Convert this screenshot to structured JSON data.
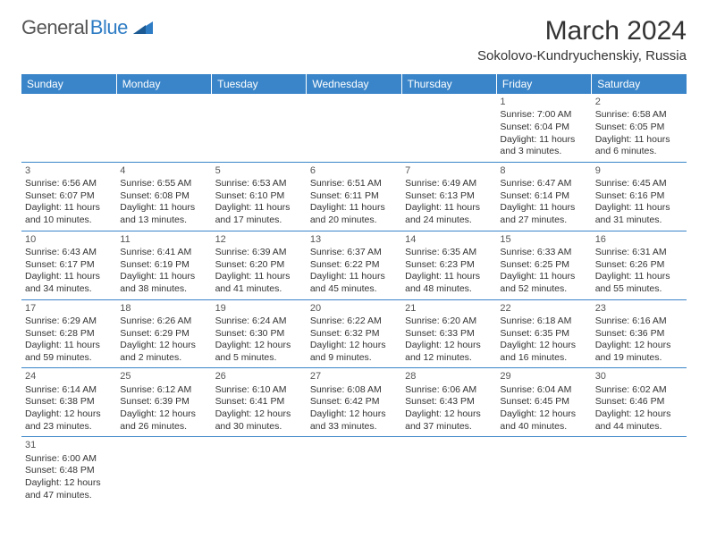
{
  "logo": {
    "text_a": "General",
    "text_b": "Blue"
  },
  "title": "March 2024",
  "location": "Sokolovo-Kundryuchenskiy, Russia",
  "colors": {
    "header_bg": "#3a85c9",
    "header_text": "#ffffff",
    "border": "#3a85c9",
    "text": "#333333",
    "logo_gray": "#555555",
    "logo_blue": "#2e7cc4"
  },
  "day_headers": [
    "Sunday",
    "Monday",
    "Tuesday",
    "Wednesday",
    "Thursday",
    "Friday",
    "Saturday"
  ],
  "weeks": [
    [
      null,
      null,
      null,
      null,
      null,
      {
        "n": "1",
        "l1": "Sunrise: 7:00 AM",
        "l2": "Sunset: 6:04 PM",
        "l3": "Daylight: 11 hours",
        "l4": "and 3 minutes."
      },
      {
        "n": "2",
        "l1": "Sunrise: 6:58 AM",
        "l2": "Sunset: 6:05 PM",
        "l3": "Daylight: 11 hours",
        "l4": "and 6 minutes."
      }
    ],
    [
      {
        "n": "3",
        "l1": "Sunrise: 6:56 AM",
        "l2": "Sunset: 6:07 PM",
        "l3": "Daylight: 11 hours",
        "l4": "and 10 minutes."
      },
      {
        "n": "4",
        "l1": "Sunrise: 6:55 AM",
        "l2": "Sunset: 6:08 PM",
        "l3": "Daylight: 11 hours",
        "l4": "and 13 minutes."
      },
      {
        "n": "5",
        "l1": "Sunrise: 6:53 AM",
        "l2": "Sunset: 6:10 PM",
        "l3": "Daylight: 11 hours",
        "l4": "and 17 minutes."
      },
      {
        "n": "6",
        "l1": "Sunrise: 6:51 AM",
        "l2": "Sunset: 6:11 PM",
        "l3": "Daylight: 11 hours",
        "l4": "and 20 minutes."
      },
      {
        "n": "7",
        "l1": "Sunrise: 6:49 AM",
        "l2": "Sunset: 6:13 PM",
        "l3": "Daylight: 11 hours",
        "l4": "and 24 minutes."
      },
      {
        "n": "8",
        "l1": "Sunrise: 6:47 AM",
        "l2": "Sunset: 6:14 PM",
        "l3": "Daylight: 11 hours",
        "l4": "and 27 minutes."
      },
      {
        "n": "9",
        "l1": "Sunrise: 6:45 AM",
        "l2": "Sunset: 6:16 PM",
        "l3": "Daylight: 11 hours",
        "l4": "and 31 minutes."
      }
    ],
    [
      {
        "n": "10",
        "l1": "Sunrise: 6:43 AM",
        "l2": "Sunset: 6:17 PM",
        "l3": "Daylight: 11 hours",
        "l4": "and 34 minutes."
      },
      {
        "n": "11",
        "l1": "Sunrise: 6:41 AM",
        "l2": "Sunset: 6:19 PM",
        "l3": "Daylight: 11 hours",
        "l4": "and 38 minutes."
      },
      {
        "n": "12",
        "l1": "Sunrise: 6:39 AM",
        "l2": "Sunset: 6:20 PM",
        "l3": "Daylight: 11 hours",
        "l4": "and 41 minutes."
      },
      {
        "n": "13",
        "l1": "Sunrise: 6:37 AM",
        "l2": "Sunset: 6:22 PM",
        "l3": "Daylight: 11 hours",
        "l4": "and 45 minutes."
      },
      {
        "n": "14",
        "l1": "Sunrise: 6:35 AM",
        "l2": "Sunset: 6:23 PM",
        "l3": "Daylight: 11 hours",
        "l4": "and 48 minutes."
      },
      {
        "n": "15",
        "l1": "Sunrise: 6:33 AM",
        "l2": "Sunset: 6:25 PM",
        "l3": "Daylight: 11 hours",
        "l4": "and 52 minutes."
      },
      {
        "n": "16",
        "l1": "Sunrise: 6:31 AM",
        "l2": "Sunset: 6:26 PM",
        "l3": "Daylight: 11 hours",
        "l4": "and 55 minutes."
      }
    ],
    [
      {
        "n": "17",
        "l1": "Sunrise: 6:29 AM",
        "l2": "Sunset: 6:28 PM",
        "l3": "Daylight: 11 hours",
        "l4": "and 59 minutes."
      },
      {
        "n": "18",
        "l1": "Sunrise: 6:26 AM",
        "l2": "Sunset: 6:29 PM",
        "l3": "Daylight: 12 hours",
        "l4": "and 2 minutes."
      },
      {
        "n": "19",
        "l1": "Sunrise: 6:24 AM",
        "l2": "Sunset: 6:30 PM",
        "l3": "Daylight: 12 hours",
        "l4": "and 5 minutes."
      },
      {
        "n": "20",
        "l1": "Sunrise: 6:22 AM",
        "l2": "Sunset: 6:32 PM",
        "l3": "Daylight: 12 hours",
        "l4": "and 9 minutes."
      },
      {
        "n": "21",
        "l1": "Sunrise: 6:20 AM",
        "l2": "Sunset: 6:33 PM",
        "l3": "Daylight: 12 hours",
        "l4": "and 12 minutes."
      },
      {
        "n": "22",
        "l1": "Sunrise: 6:18 AM",
        "l2": "Sunset: 6:35 PM",
        "l3": "Daylight: 12 hours",
        "l4": "and 16 minutes."
      },
      {
        "n": "23",
        "l1": "Sunrise: 6:16 AM",
        "l2": "Sunset: 6:36 PM",
        "l3": "Daylight: 12 hours",
        "l4": "and 19 minutes."
      }
    ],
    [
      {
        "n": "24",
        "l1": "Sunrise: 6:14 AM",
        "l2": "Sunset: 6:38 PM",
        "l3": "Daylight: 12 hours",
        "l4": "and 23 minutes."
      },
      {
        "n": "25",
        "l1": "Sunrise: 6:12 AM",
        "l2": "Sunset: 6:39 PM",
        "l3": "Daylight: 12 hours",
        "l4": "and 26 minutes."
      },
      {
        "n": "26",
        "l1": "Sunrise: 6:10 AM",
        "l2": "Sunset: 6:41 PM",
        "l3": "Daylight: 12 hours",
        "l4": "and 30 minutes."
      },
      {
        "n": "27",
        "l1": "Sunrise: 6:08 AM",
        "l2": "Sunset: 6:42 PM",
        "l3": "Daylight: 12 hours",
        "l4": "and 33 minutes."
      },
      {
        "n": "28",
        "l1": "Sunrise: 6:06 AM",
        "l2": "Sunset: 6:43 PM",
        "l3": "Daylight: 12 hours",
        "l4": "and 37 minutes."
      },
      {
        "n": "29",
        "l1": "Sunrise: 6:04 AM",
        "l2": "Sunset: 6:45 PM",
        "l3": "Daylight: 12 hours",
        "l4": "and 40 minutes."
      },
      {
        "n": "30",
        "l1": "Sunrise: 6:02 AM",
        "l2": "Sunset: 6:46 PM",
        "l3": "Daylight: 12 hours",
        "l4": "and 44 minutes."
      }
    ],
    [
      {
        "n": "31",
        "l1": "Sunrise: 6:00 AM",
        "l2": "Sunset: 6:48 PM",
        "l3": "Daylight: 12 hours",
        "l4": "and 47 minutes."
      },
      null,
      null,
      null,
      null,
      null,
      null
    ]
  ]
}
